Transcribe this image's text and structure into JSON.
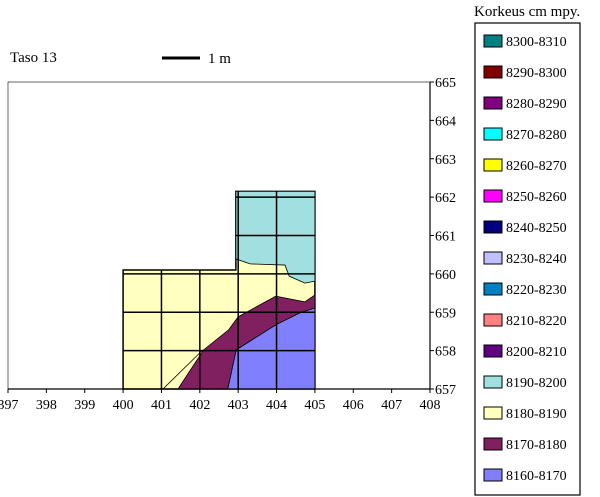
{
  "title": "Taso 13",
  "scale_label": "1 m",
  "chart_data": {
    "type": "contour-map",
    "title": "Taso 13",
    "xlim": [
      397,
      408
    ],
    "ylim": [
      657,
      665
    ],
    "x_ticks": [
      "397",
      "398",
      "399",
      "400",
      "401",
      "402",
      "403",
      "404",
      "405",
      "406",
      "407",
      "408"
    ],
    "y_ticks": [
      "665",
      "664",
      "663",
      "662",
      "661",
      "660",
      "659",
      "658",
      "657"
    ],
    "legend_title": "Korkeus cm mpy.",
    "legend": [
      {
        "label": "8300-8310",
        "color": "#008080"
      },
      {
        "label": "8290-8300",
        "color": "#800000"
      },
      {
        "label": "8280-8290",
        "color": "#800080"
      },
      {
        "label": "8270-8280",
        "color": "#00ffff"
      },
      {
        "label": "8260-8270",
        "color": "#ffff00"
      },
      {
        "label": "8250-8260",
        "color": "#ff00ff"
      },
      {
        "label": "8240-8250",
        "color": "#000080"
      },
      {
        "label": "8230-8240",
        "color": "#c0c0ff"
      },
      {
        "label": "8220-8230",
        "color": "#0080c0"
      },
      {
        "label": "8210-8220",
        "color": "#ff8080"
      },
      {
        "label": "8200-8210",
        "color": "#600080"
      },
      {
        "label": "8190-8200",
        "color": "#a0e0e0"
      },
      {
        "label": "8180-8190",
        "color": "#ffffc0"
      },
      {
        "label": "8170-8180",
        "color": "#802060"
      },
      {
        "label": "8160-8170",
        "color": "#8080ff"
      }
    ],
    "regions": [
      {
        "range": "8180-8190",
        "color": "#ffffc0",
        "points": [
          [
            400,
            657
          ],
          [
            400,
            660.1
          ],
          [
            402.94,
            660.1
          ],
          [
            402.94,
            662.15
          ],
          [
            405,
            662.15
          ],
          [
            405,
            657
          ]
        ]
      },
      {
        "range": "8190-8200",
        "color": "#a0e0e0",
        "points": [
          [
            402.94,
            662.15
          ],
          [
            405,
            662.15
          ],
          [
            405,
            659.81
          ],
          [
            404.74,
            659.76
          ],
          [
            404.33,
            659.94
          ],
          [
            404.22,
            660.23
          ],
          [
            403.31,
            660.26
          ],
          [
            402.94,
            660.39
          ]
        ]
      },
      {
        "range": "8170-8180",
        "color": "#802060",
        "points": [
          [
            405,
            659.45
          ],
          [
            404.74,
            659.27
          ],
          [
            403.98,
            659.42
          ],
          [
            403,
            658.88
          ],
          [
            402.75,
            658.54
          ],
          [
            402.1,
            658.02
          ],
          [
            401.43,
            657
          ],
          [
            402.73,
            657
          ],
          [
            402.95,
            658.02
          ],
          [
            403.98,
            658.67
          ],
          [
            404.6,
            658.98
          ],
          [
            405,
            659.11
          ]
        ]
      },
      {
        "range": "8160-8170",
        "color": "#8080ff",
        "points": [
          [
            402.73,
            657
          ],
          [
            402.95,
            658.02
          ],
          [
            403.98,
            658.67
          ],
          [
            404.6,
            658.98
          ],
          [
            405,
            659.11
          ],
          [
            405,
            657
          ]
        ]
      }
    ]
  }
}
